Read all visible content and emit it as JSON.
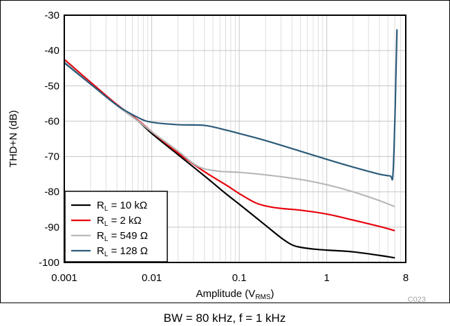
{
  "chart_data": {
    "type": "line",
    "xlabel": "Amplitude (V",
    "xlabel_sub": "RMS",
    "xlabel_close": ")",
    "ylabel": "THD+N (dB)",
    "x_scale": "log",
    "xlim": [
      0.001,
      8
    ],
    "ylim": [
      -100,
      -30
    ],
    "grid": true,
    "x_ticks": [
      {
        "value": 0.001,
        "label": "0.001"
      },
      {
        "value": 0.01,
        "label": "0.01"
      },
      {
        "value": 0.1,
        "label": "0.1"
      },
      {
        "value": 1,
        "label": "1"
      },
      {
        "value": 8,
        "label": "8"
      }
    ],
    "y_ticks": [
      {
        "value": -30,
        "label": "-30"
      },
      {
        "value": -40,
        "label": "-40"
      },
      {
        "value": -50,
        "label": "-50"
      },
      {
        "value": -60,
        "label": "-60"
      },
      {
        "value": -70,
        "label": "-70"
      },
      {
        "value": -80,
        "label": "-80"
      },
      {
        "value": -90,
        "label": "-90"
      },
      {
        "value": -100,
        "label": "-100"
      }
    ],
    "legend_position": "bottom-left",
    "series": [
      {
        "name": "RL = 10 kΩ",
        "legend_main": "R",
        "legend_sub": "L",
        "legend_rest": " = 10 kΩ",
        "color": "#000000",
        "points": [
          [
            0.001,
            -43
          ],
          [
            0.002,
            -49
          ],
          [
            0.004,
            -55.5
          ],
          [
            0.007,
            -60
          ],
          [
            0.01,
            -63.5
          ],
          [
            0.02,
            -69.5
          ],
          [
            0.04,
            -75.5
          ],
          [
            0.07,
            -80.5
          ],
          [
            0.1,
            -83.5
          ],
          [
            0.2,
            -89.5
          ],
          [
            0.3,
            -93
          ],
          [
            0.4,
            -95
          ],
          [
            0.5,
            -95.7
          ],
          [
            0.7,
            -96.2
          ],
          [
            1,
            -96.5
          ],
          [
            2,
            -97
          ],
          [
            4,
            -98
          ],
          [
            6,
            -98.7
          ]
        ]
      },
      {
        "name": "RL = 2 kΩ",
        "legend_main": "R",
        "legend_sub": "L",
        "legend_rest": " = 2 kΩ",
        "color": "#e8000b",
        "points": [
          [
            0.001,
            -42.5
          ],
          [
            0.002,
            -49
          ],
          [
            0.004,
            -55.3
          ],
          [
            0.007,
            -59.8
          ],
          [
            0.01,
            -63
          ],
          [
            0.02,
            -69
          ],
          [
            0.04,
            -74.3
          ],
          [
            0.07,
            -78
          ],
          [
            0.1,
            -80.5
          ],
          [
            0.15,
            -83
          ],
          [
            0.2,
            -84
          ],
          [
            0.3,
            -84.7
          ],
          [
            0.5,
            -85.2
          ],
          [
            1,
            -86.3
          ],
          [
            2,
            -88
          ],
          [
            4,
            -89.8
          ],
          [
            6,
            -91
          ]
        ]
      },
      {
        "name": "RL = 549 Ω",
        "legend_main": "R",
        "legend_sub": "L",
        "legend_rest": " = 549 Ω",
        "color": "#b8b8b8",
        "points": [
          [
            0.001,
            -43
          ],
          [
            0.002,
            -49.5
          ],
          [
            0.004,
            -55.5
          ],
          [
            0.007,
            -60
          ],
          [
            0.01,
            -63
          ],
          [
            0.02,
            -68.5
          ],
          [
            0.03,
            -72
          ],
          [
            0.04,
            -73.5
          ],
          [
            0.06,
            -74.2
          ],
          [
            0.1,
            -74.5
          ],
          [
            0.2,
            -75.2
          ],
          [
            0.5,
            -76.5
          ],
          [
            1,
            -78
          ],
          [
            2,
            -80
          ],
          [
            4,
            -82.5
          ],
          [
            6,
            -84.2
          ]
        ]
      },
      {
        "name": "RL = 128 Ω",
        "legend_main": "R",
        "legend_sub": "L",
        "legend_rest": " = 128 Ω",
        "color": "#2b5a78",
        "points": [
          [
            0.001,
            -43.5
          ],
          [
            0.002,
            -49.5
          ],
          [
            0.004,
            -55.5
          ],
          [
            0.007,
            -59
          ],
          [
            0.01,
            -60.3
          ],
          [
            0.02,
            -61
          ],
          [
            0.04,
            -61.2
          ],
          [
            0.07,
            -62.5
          ],
          [
            0.1,
            -63.5
          ],
          [
            0.2,
            -65.5
          ],
          [
            0.5,
            -68.5
          ],
          [
            1,
            -70.8
          ],
          [
            2,
            -73
          ],
          [
            4,
            -75
          ],
          [
            5.3,
            -75.5
          ],
          [
            5.7,
            -75.4
          ],
          [
            6.0,
            -60
          ],
          [
            6.2,
            -45
          ],
          [
            6.35,
            -34
          ]
        ]
      }
    ]
  },
  "figure_code": "C023",
  "caption": "BW = 80 kHz, f = 1 kHz"
}
